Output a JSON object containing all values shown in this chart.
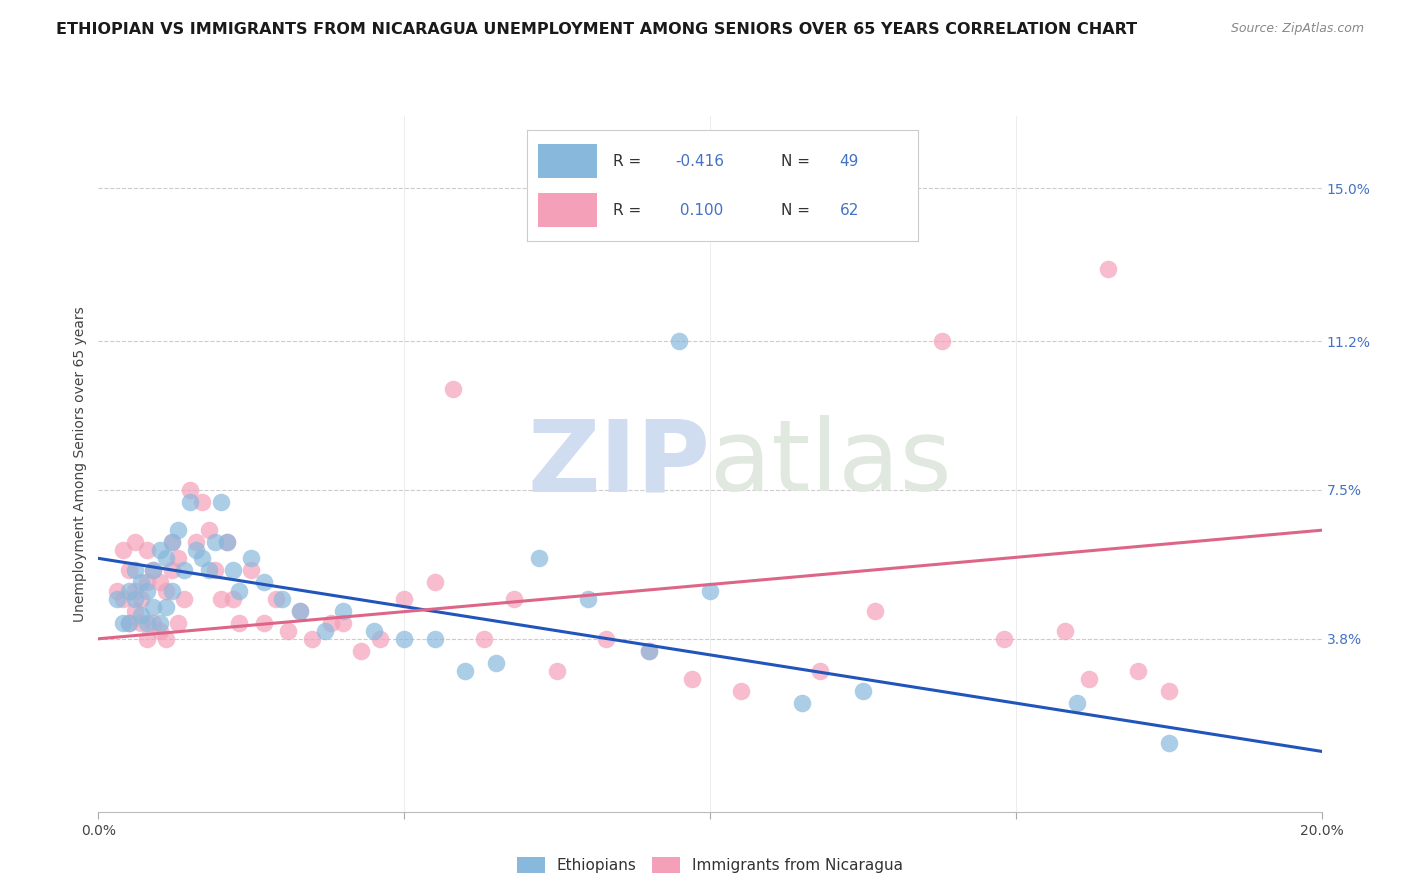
{
  "title": "ETHIOPIAN VS IMMIGRANTS FROM NICARAGUA UNEMPLOYMENT AMONG SENIORS OVER 65 YEARS CORRELATION CHART",
  "source": "Source: ZipAtlas.com",
  "ylabel": "Unemployment Among Seniors over 65 years",
  "ytick_labels": [
    "15.0%",
    "11.2%",
    "7.5%",
    "3.8%"
  ],
  "ytick_values": [
    0.15,
    0.112,
    0.075,
    0.038
  ],
  "xlim": [
    0.0,
    0.2
  ],
  "ylim": [
    -0.005,
    0.168
  ],
  "legend_entries": [
    {
      "label_r": "R = -0.416",
      "label_n": "N = 49",
      "color": "#aac4e0"
    },
    {
      "label_r": "R =  0.100",
      "label_n": "N = 62",
      "color": "#f4a0b8"
    }
  ],
  "legend_label_ethiopians": "Ethiopians",
  "legend_label_nicaragua": "Immigrants from Nicaragua",
  "color_ethiopians": "#88B8DC",
  "color_nicaragua": "#F4A0B8",
  "line_color_ethiopians": "#2255BB",
  "line_color_nicaragua": "#DD6688",
  "background_color": "#FFFFFF",
  "watermark_zip": "ZIP",
  "watermark_atlas": "atlas",
  "grid_color": "#CCCCCC",
  "title_fontsize": 11.5,
  "axis_label_fontsize": 10,
  "tick_fontsize": 10,
  "ethiopians_x": [
    0.003,
    0.004,
    0.005,
    0.005,
    0.006,
    0.006,
    0.007,
    0.007,
    0.008,
    0.008,
    0.009,
    0.009,
    0.01,
    0.01,
    0.011,
    0.011,
    0.012,
    0.012,
    0.013,
    0.014,
    0.015,
    0.016,
    0.017,
    0.018,
    0.019,
    0.02,
    0.021,
    0.022,
    0.023,
    0.025,
    0.027,
    0.03,
    0.033,
    0.037,
    0.04,
    0.045,
    0.05,
    0.055,
    0.06,
    0.065,
    0.072,
    0.08,
    0.09,
    0.095,
    0.1,
    0.115,
    0.125,
    0.16,
    0.175
  ],
  "ethiopians_y": [
    0.048,
    0.042,
    0.05,
    0.042,
    0.055,
    0.048,
    0.052,
    0.044,
    0.05,
    0.042,
    0.055,
    0.046,
    0.06,
    0.042,
    0.058,
    0.046,
    0.062,
    0.05,
    0.065,
    0.055,
    0.072,
    0.06,
    0.058,
    0.055,
    0.062,
    0.072,
    0.062,
    0.055,
    0.05,
    0.058,
    0.052,
    0.048,
    0.045,
    0.04,
    0.045,
    0.04,
    0.038,
    0.038,
    0.03,
    0.032,
    0.058,
    0.048,
    0.035,
    0.112,
    0.05,
    0.022,
    0.025,
    0.022,
    0.012
  ],
  "nicaragua_x": [
    0.003,
    0.004,
    0.004,
    0.005,
    0.005,
    0.006,
    0.006,
    0.006,
    0.007,
    0.007,
    0.008,
    0.008,
    0.008,
    0.009,
    0.009,
    0.01,
    0.01,
    0.011,
    0.011,
    0.012,
    0.012,
    0.013,
    0.013,
    0.014,
    0.015,
    0.016,
    0.017,
    0.018,
    0.019,
    0.02,
    0.021,
    0.022,
    0.023,
    0.025,
    0.027,
    0.029,
    0.031,
    0.033,
    0.035,
    0.038,
    0.04,
    0.043,
    0.046,
    0.05,
    0.055,
    0.058,
    0.063,
    0.068,
    0.075,
    0.083,
    0.09,
    0.097,
    0.105,
    0.118,
    0.127,
    0.138,
    0.148,
    0.158,
    0.162,
    0.165,
    0.17,
    0.175
  ],
  "nicaragua_y": [
    0.05,
    0.048,
    0.06,
    0.042,
    0.055,
    0.045,
    0.05,
    0.062,
    0.042,
    0.048,
    0.038,
    0.052,
    0.06,
    0.042,
    0.055,
    0.04,
    0.052,
    0.038,
    0.05,
    0.055,
    0.062,
    0.042,
    0.058,
    0.048,
    0.075,
    0.062,
    0.072,
    0.065,
    0.055,
    0.048,
    0.062,
    0.048,
    0.042,
    0.055,
    0.042,
    0.048,
    0.04,
    0.045,
    0.038,
    0.042,
    0.042,
    0.035,
    0.038,
    0.048,
    0.052,
    0.1,
    0.038,
    0.048,
    0.03,
    0.038,
    0.035,
    0.028,
    0.025,
    0.03,
    0.045,
    0.112,
    0.038,
    0.04,
    0.028,
    0.13,
    0.03,
    0.025
  ],
  "eth_line_x0": 0.0,
  "eth_line_y0": 0.058,
  "eth_line_x1": 0.2,
  "eth_line_y1": 0.01,
  "nic_line_x0": 0.0,
  "nic_line_y0": 0.038,
  "nic_line_x1": 0.2,
  "nic_line_y1": 0.065
}
